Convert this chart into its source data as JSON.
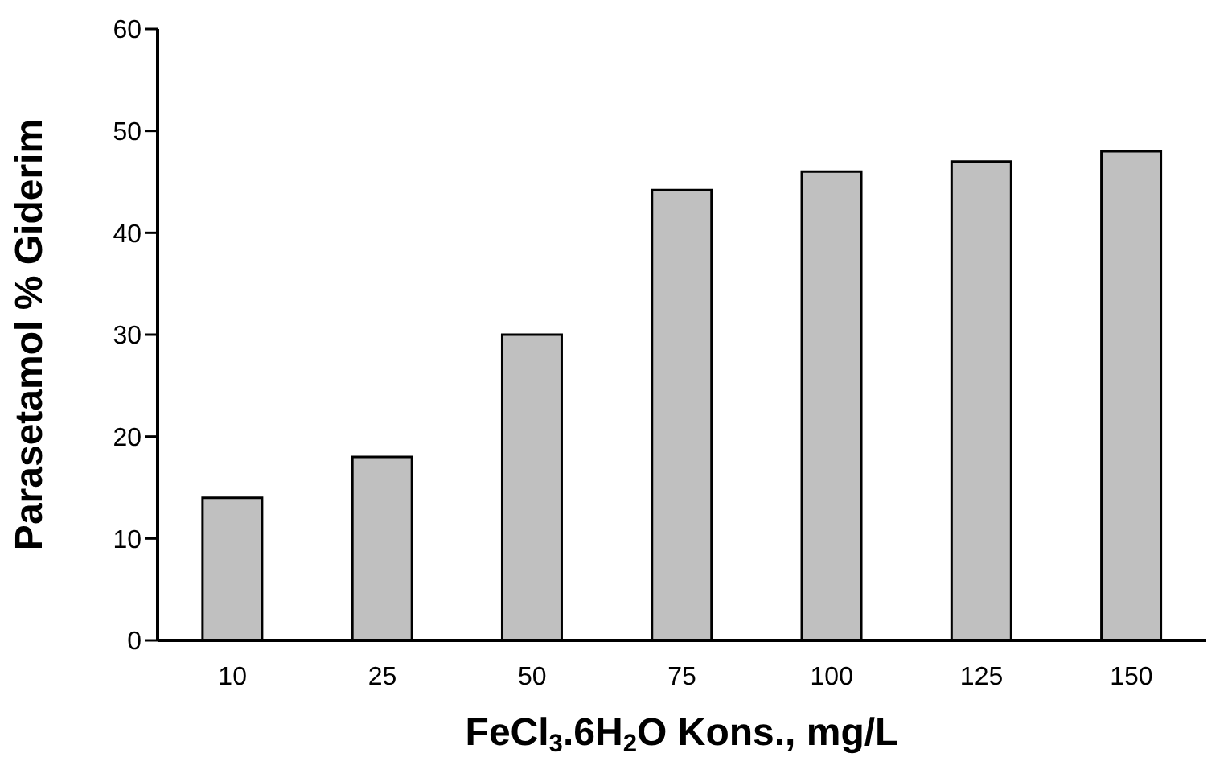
{
  "chart_data": {
    "type": "bar",
    "xlabel": "FeCl$_{3}$.6H$_{2}$O Kons., mg/L",
    "ylabel": "Parasetamol % Giderim",
    "categories": [
      "10",
      "25",
      "50",
      "75",
      "100",
      "125",
      "150"
    ],
    "values": [
      14,
      18,
      30,
      44.2,
      46,
      47,
      48
    ],
    "color": "#c0c0c0",
    "ylim": [
      0,
      60
    ],
    "yticks": [
      0,
      10,
      20,
      30,
      40,
      50,
      60
    ],
    "grid": false
  }
}
